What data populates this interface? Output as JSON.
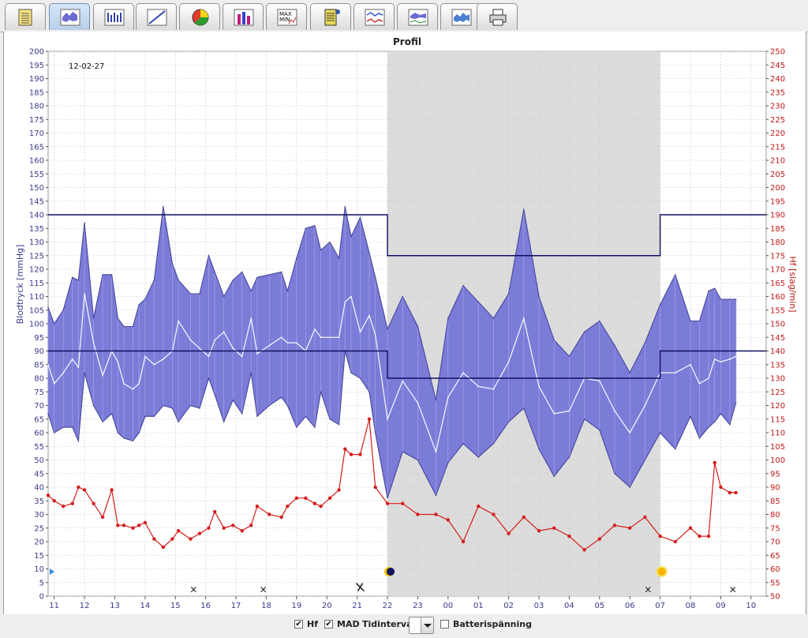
{
  "toolbar": {
    "tabs": [
      {
        "icon": "notepad-icon"
      },
      {
        "icon": "profile-chart-icon",
        "active": true
      },
      {
        "icon": "bar-stats-icon"
      },
      {
        "icon": "scatter-icon"
      },
      {
        "icon": "pie-chart-icon"
      },
      {
        "icon": "histogram-icon"
      },
      {
        "icon": "max-min-icon",
        "text1": "MAX",
        "text2": "MIN"
      },
      {
        "icon": "device-icon"
      },
      {
        "icon": "trend-icon"
      },
      {
        "icon": "combined-chart-icon"
      },
      {
        "icon": "area-chart-icon"
      },
      {
        "icon": "printer-icon"
      }
    ]
  },
  "chart_data": {
    "type": "area",
    "title": "Profil",
    "date_label": "12-02-27",
    "ylabel_left": "Blodtryck [mmHg]",
    "ylabel_right": "Hf [slag/min]",
    "ylim_left": [
      0,
      200
    ],
    "ylim_right": [
      50,
      250
    ],
    "y_ticks_left": [
      "0",
      "5",
      "10",
      "15",
      "20",
      "25",
      "30",
      "35",
      "40",
      "45",
      "50",
      "55",
      "60",
      "65",
      "70",
      "75",
      "80",
      "85",
      "90",
      "95",
      "100",
      "105",
      "110",
      "115",
      "120",
      "125",
      "130",
      "135",
      "140",
      "145",
      "150",
      "155",
      "160",
      "165",
      "170",
      "175",
      "180",
      "185",
      "190",
      "195",
      "200"
    ],
    "y_ticks_right": [
      "50",
      "55",
      "60",
      "65",
      "70",
      "75",
      "80",
      "85",
      "90",
      "95",
      "100",
      "105",
      "110",
      "115",
      "120",
      "125",
      "130",
      "135",
      "140",
      "145",
      "150",
      "155",
      "160",
      "165",
      "170",
      "175",
      "180",
      "185",
      "190",
      "195",
      "200",
      "205",
      "210",
      "215",
      "220",
      "225",
      "230",
      "235",
      "240",
      "245",
      "250"
    ],
    "x_ticks": [
      "11",
      "12",
      "13",
      "14",
      "15",
      "16",
      "17",
      "18",
      "19",
      "20",
      "21",
      "22",
      "23",
      "00",
      "01",
      "02",
      "03",
      "04",
      "05",
      "06",
      "07",
      "08",
      "09",
      "10"
    ],
    "x_range_hours": [
      10.8,
      34.5
    ],
    "night_period": [
      "22",
      "07"
    ],
    "limits": {
      "systolic_day": 140,
      "systolic_night": 125,
      "diastolic_day": 90,
      "diastolic_night": 80
    },
    "series": [
      {
        "name": "Systolic",
        "x": [
          10.8,
          11.0,
          11.3,
          11.6,
          11.8,
          12.0,
          12.3,
          12.6,
          12.9,
          13.1,
          13.3,
          13.6,
          13.8,
          14.0,
          14.3,
          14.6,
          14.9,
          15.1,
          15.5,
          15.8,
          16.1,
          16.3,
          16.6,
          16.9,
          17.2,
          17.5,
          17.7,
          18.1,
          18.5,
          18.7,
          19.0,
          19.3,
          19.6,
          19.8,
          20.1,
          20.4,
          20.6,
          20.8,
          21.1,
          21.4,
          21.6,
          22.0,
          22.5,
          23.0,
          23.6,
          24.0,
          24.5,
          25.0,
          25.5,
          26.0,
          26.5,
          27.0,
          27.5,
          28.0,
          28.5,
          29.0,
          29.5,
          30.0,
          30.5,
          31.0,
          31.5,
          32.0,
          32.3,
          32.6,
          32.8,
          33.0,
          33.3,
          33.5
        ],
        "values": [
          106,
          100,
          105,
          117,
          116,
          137,
          102,
          118,
          118,
          102,
          99,
          99,
          107,
          109,
          116,
          143,
          122,
          116,
          111,
          111,
          125,
          119,
          110,
          116,
          119,
          112,
          117,
          118,
          119,
          112,
          124,
          135,
          136,
          127,
          130,
          124,
          143,
          132,
          139,
          126,
          117,
          98,
          110,
          99,
          72,
          102,
          114,
          108,
          102,
          111,
          142,
          110,
          94,
          88,
          97,
          101,
          92,
          82,
          93,
          107,
          118,
          101,
          101,
          112,
          113,
          109,
          109,
          109
        ]
      },
      {
        "name": "MAD",
        "x": [
          10.8,
          11.0,
          11.3,
          11.6,
          11.8,
          12.0,
          12.3,
          12.6,
          12.9,
          13.1,
          13.3,
          13.6,
          13.8,
          14.0,
          14.3,
          14.6,
          14.9,
          15.1,
          15.5,
          15.8,
          16.1,
          16.3,
          16.6,
          16.9,
          17.2,
          17.5,
          17.7,
          18.1,
          18.5,
          18.7,
          19.0,
          19.3,
          19.6,
          19.8,
          20.1,
          20.4,
          20.6,
          20.8,
          21.1,
          21.4,
          21.6,
          22.0,
          22.5,
          23.0,
          23.6,
          24.0,
          24.5,
          25.0,
          25.5,
          26.0,
          26.5,
          27.0,
          27.5,
          28.0,
          28.5,
          29.0,
          29.5,
          30.0,
          30.5,
          31.0,
          31.5,
          32.0,
          32.3,
          32.6,
          32.8,
          33.0,
          33.3,
          33.5
        ],
        "values": [
          85,
          78,
          82,
          87,
          84,
          111,
          93,
          81,
          90,
          86,
          78,
          76,
          78,
          88,
          85,
          87,
          90,
          101,
          94,
          91,
          88,
          94,
          97,
          91,
          88,
          102,
          89,
          92,
          95,
          93,
          93,
          90,
          98,
          95,
          95,
          95,
          108,
          110,
          97,
          103,
          96,
          65,
          79,
          71,
          53,
          73,
          82,
          77,
          76,
          86,
          102,
          77,
          67,
          68,
          80,
          79,
          68,
          60,
          70,
          82,
          82,
          85,
          78,
          80,
          87,
          86,
          87,
          88
        ]
      },
      {
        "name": "Diastolic",
        "x": [
          10.8,
          11.0,
          11.3,
          11.6,
          11.8,
          12.0,
          12.3,
          12.6,
          12.9,
          13.1,
          13.3,
          13.6,
          13.8,
          14.0,
          14.3,
          14.6,
          14.9,
          15.1,
          15.5,
          15.8,
          16.1,
          16.3,
          16.6,
          16.9,
          17.2,
          17.5,
          17.7,
          18.1,
          18.5,
          18.7,
          19.0,
          19.3,
          19.6,
          19.8,
          20.1,
          20.4,
          20.6,
          20.8,
          21.1,
          21.4,
          21.6,
          22.0,
          22.5,
          23.0,
          23.6,
          24.0,
          24.5,
          25.0,
          25.5,
          26.0,
          26.5,
          27.0,
          27.5,
          28.0,
          28.5,
          29.0,
          29.5,
          30.0,
          30.5,
          31.0,
          31.5,
          32.0,
          32.3,
          32.6,
          32.8,
          33.0,
          33.3,
          33.5
        ],
        "values": [
          67,
          60,
          62,
          62,
          57,
          82,
          70,
          64,
          67,
          60,
          58,
          57,
          60,
          66,
          66,
          70,
          69,
          64,
          70,
          69,
          80,
          74,
          64,
          72,
          67,
          82,
          66,
          70,
          73,
          70,
          62,
          66,
          62,
          75,
          65,
          63,
          90,
          82,
          80,
          75,
          60,
          36,
          53,
          50,
          37,
          49,
          56,
          51,
          56,
          64,
          69,
          54,
          44,
          51,
          65,
          61,
          45,
          40,
          50,
          60,
          54,
          66,
          58,
          62,
          64,
          67,
          63,
          71
        ]
      },
      {
        "name": "Hf",
        "x": [
          10.8,
          11.0,
          11.3,
          11.6,
          11.8,
          12.0,
          12.3,
          12.6,
          12.9,
          13.1,
          13.3,
          13.6,
          13.8,
          14.0,
          14.3,
          14.6,
          14.9,
          15.1,
          15.5,
          15.8,
          16.1,
          16.3,
          16.6,
          16.9,
          17.2,
          17.5,
          17.7,
          18.1,
          18.5,
          18.7,
          19.0,
          19.3,
          19.6,
          19.8,
          20.1,
          20.4,
          20.6,
          20.8,
          21.1,
          21.4,
          21.6,
          22.0,
          22.5,
          23.0,
          23.6,
          24.0,
          24.5,
          25.0,
          25.5,
          26.0,
          26.5,
          27.0,
          27.5,
          28.0,
          28.5,
          29.0,
          29.5,
          30.0,
          30.5,
          31.0,
          31.5,
          32.0,
          32.3,
          32.6,
          32.8,
          33.0,
          33.3,
          33.5
        ],
        "values": [
          87,
          85,
          83,
          84,
          90,
          89,
          84,
          79,
          89,
          76,
          76,
          75,
          76,
          77,
          71,
          68,
          71,
          74,
          71,
          73,
          75,
          81,
          75,
          76,
          74,
          76,
          83,
          80,
          79,
          83,
          86,
          86,
          84,
          83,
          86,
          89,
          104,
          102,
          102,
          115,
          90,
          84,
          84,
          80,
          80,
          78,
          70,
          83,
          80,
          73,
          79,
          74,
          75,
          72,
          67,
          71,
          76,
          75,
          79,
          72,
          70,
          75,
          72,
          72,
          99,
          90,
          88,
          88
        ]
      }
    ],
    "events": [
      {
        "label": "×",
        "x": 15.6
      },
      {
        "label": "×",
        "x": 17.9
      },
      {
        "label": "×",
        "x": 30.6
      },
      {
        "label": "×",
        "x": 33.4
      }
    ]
  },
  "controls": {
    "hf_label": "Hf",
    "hf_checked": true,
    "mad_label": "MAD",
    "mad_checked": true,
    "interval_label": "Tidintervall",
    "interval_value": "",
    "battery_label": "Batterispänning",
    "battery_checked": false
  }
}
